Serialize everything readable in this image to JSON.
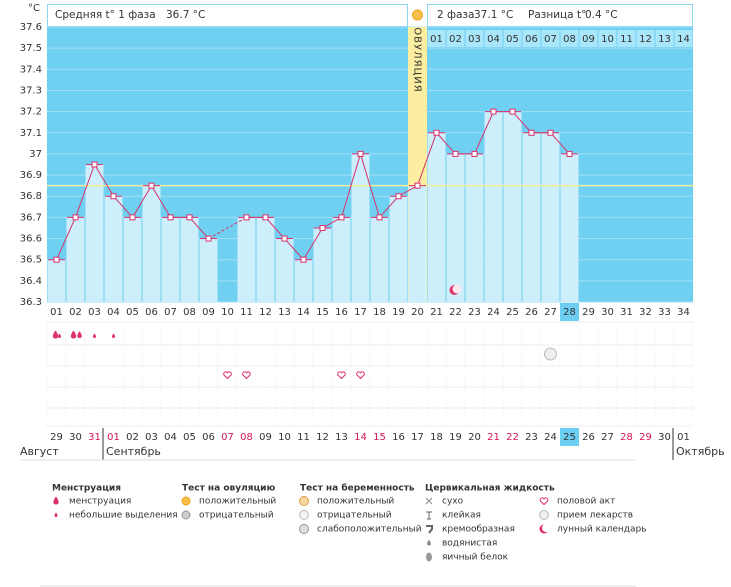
{
  "chart_data": {
    "type": "line",
    "header": {
      "unit": "°C",
      "phase1_label": "Средняя t° 1 фаза",
      "phase1_value": "36.7 °C",
      "phase2_label": "2 фаза",
      "phase2_value": "37.1 °C",
      "diff_label": "Разница t°",
      "diff_value": "0.4 °C"
    },
    "ylim": [
      36.3,
      37.6
    ],
    "yticks": [
      37.6,
      37.5,
      37.4,
      37.3,
      37.2,
      37.1,
      37,
      36.9,
      36.8,
      36.7,
      36.6,
      36.5,
      36.4,
      36.3
    ],
    "grid": true,
    "ovulation_label": "ОВУЛЯЦИЯ",
    "coverline": 36.85,
    "coverline_color": "#f3ec9c",
    "bar_color": "#cdeefb",
    "background_color": "#70d0f2",
    "series": [
      {
        "color": "#d6336c",
        "values": [
          36.5,
          36.7,
          36.95,
          36.8,
          36.7,
          36.85,
          36.7,
          36.7,
          36.6,
          null,
          36.7,
          36.7,
          36.6,
          36.5,
          36.65,
          36.7,
          37.0,
          36.7,
          36.8,
          36.85,
          37.1,
          37.0,
          37.0,
          37.2,
          37.2,
          37.1,
          37.1,
          37.0,
          null,
          null,
          null,
          null,
          null,
          null
        ]
      }
    ],
    "phase2_days": [
      "01",
      "02",
      "03",
      "04",
      "05",
      "06",
      "07",
      "08",
      "09",
      "10",
      "11",
      "12",
      "13",
      "14"
    ],
    "cycle_days": [
      "01",
      "02",
      "03",
      "04",
      "05",
      "06",
      "07",
      "08",
      "09",
      "10",
      "11",
      "12",
      "13",
      "14",
      "15",
      "16",
      "17",
      "18",
      "19",
      "20",
      "21",
      "22",
      "23",
      "24",
      "25",
      "26",
      "27",
      "28",
      "29",
      "30",
      "31",
      "32",
      "33",
      "34"
    ],
    "dates": [
      {
        "label": "29"
      },
      {
        "label": "30"
      },
      {
        "label": "31",
        "color": "#d4145a"
      },
      {
        "label": "01",
        "color": "#d4145a"
      },
      {
        "label": "02"
      },
      {
        "label": "03"
      },
      {
        "label": "04"
      },
      {
        "label": "05"
      },
      {
        "label": "06"
      },
      {
        "label": "07",
        "color": "#d4145a"
      },
      {
        "label": "08",
        "color": "#d4145a"
      },
      {
        "label": "09"
      },
      {
        "label": "10"
      },
      {
        "label": "11"
      },
      {
        "label": "12"
      },
      {
        "label": "13"
      },
      {
        "label": "14",
        "color": "#d4145a"
      },
      {
        "label": "15",
        "color": "#d4145a"
      },
      {
        "label": "16"
      },
      {
        "label": "17"
      },
      {
        "label": "18"
      },
      {
        "label": "19"
      },
      {
        "label": "20"
      },
      {
        "label": "21",
        "color": "#d4145a"
      },
      {
        "label": "22",
        "color": "#d4145a"
      },
      {
        "label": "23"
      },
      {
        "label": "24"
      },
      {
        "label": "25"
      },
      {
        "label": "26"
      },
      {
        "label": "27"
      },
      {
        "label": "28",
        "color": "#d4145a"
      },
      {
        "label": "29",
        "color": "#d4145a"
      },
      {
        "label": "30"
      },
      {
        "label": "01"
      }
    ],
    "months": [
      "Август",
      "Сентябрь",
      "Октябрь"
    ],
    "legend": [
      {
        "title": "Менструация",
        "items": [
          "менструация",
          "небольшие выделения"
        ]
      },
      {
        "title": "Тест на овуляцию",
        "items": [
          "положительный",
          "отрицательный"
        ]
      },
      {
        "title": "Тест на беременность",
        "items": [
          "положительный",
          "отрицательный",
          "слабоположительный"
        ]
      },
      {
        "title": "Цервикальная жидкость",
        "items": [
          "сухо",
          "клейкая",
          "кремообразная",
          "водянистая",
          "яичный белок"
        ]
      },
      {
        "items": [
          "половой акт",
          "прием лекарств",
          "лунный календарь"
        ]
      }
    ]
  }
}
